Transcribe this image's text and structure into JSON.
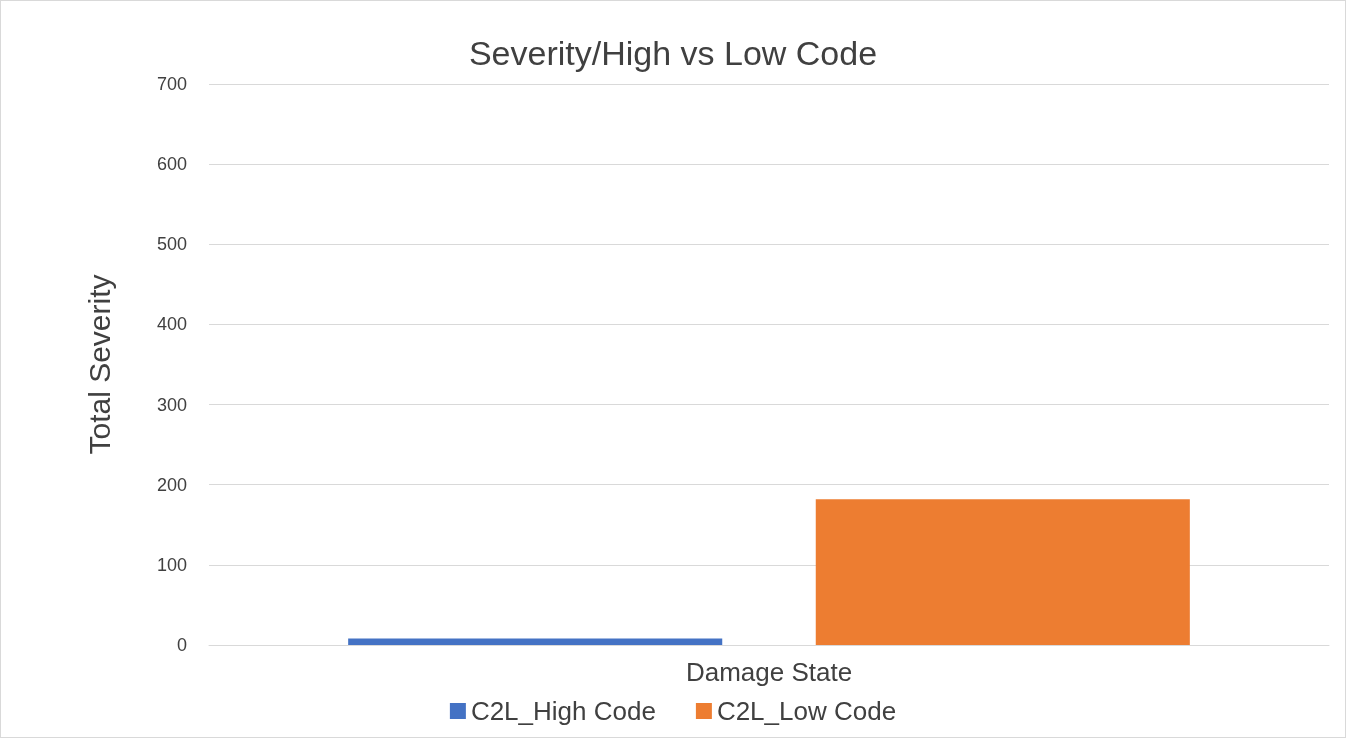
{
  "chart_data": {
    "type": "bar",
    "title": "Severity/High vs Low Code",
    "ylabel": "Total Severity",
    "categories": [
      "Damage State"
    ],
    "series": [
      {
        "name": "C2L_High Code",
        "color": "#4472c4",
        "values": [
          8
        ]
      },
      {
        "name": "C2L_Low Code",
        "color": "#ed7d31",
        "values": [
          182
        ]
      }
    ],
    "ylim": [
      0,
      700
    ],
    "yticks": [
      0,
      100,
      200,
      300,
      400,
      500,
      600,
      700
    ],
    "grid": "y",
    "legend": "bottom"
  }
}
